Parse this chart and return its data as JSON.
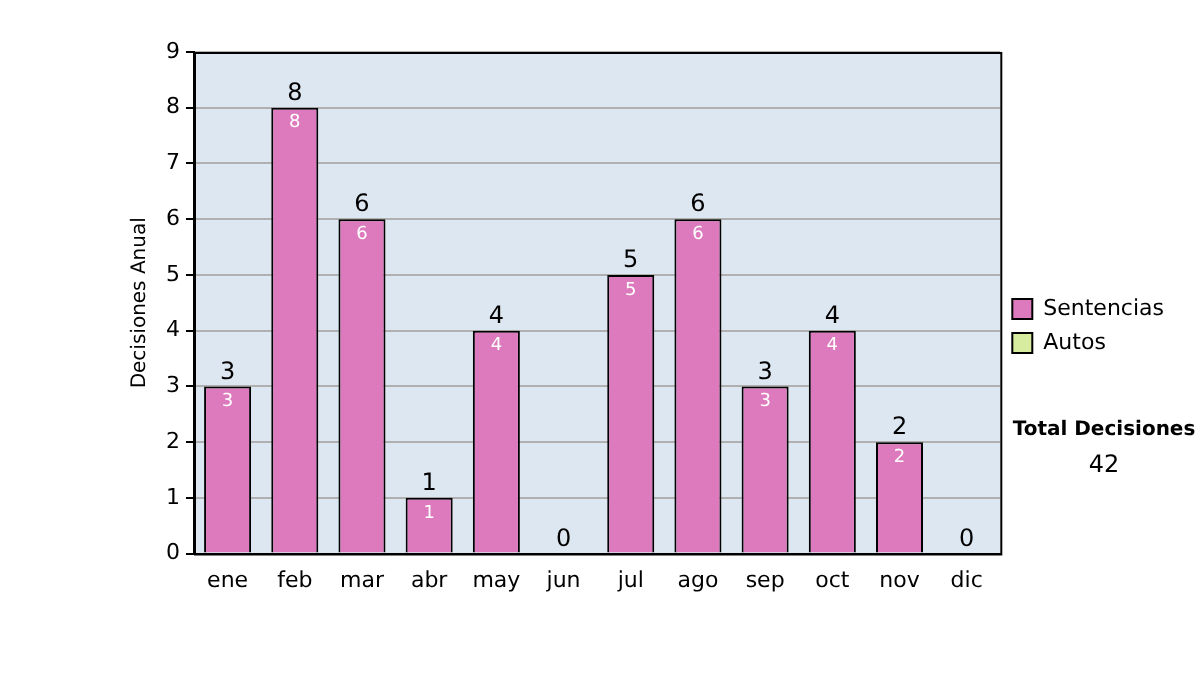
{
  "chart_data": {
    "type": "bar",
    "ylabel": "Decisiones Anual",
    "categories": [
      "ene",
      "feb",
      "mar",
      "abr",
      "may",
      "jun",
      "jul",
      "ago",
      "sep",
      "oct",
      "nov",
      "dic"
    ],
    "series": [
      {
        "name": "Sentencias",
        "color": "#dc7abd",
        "values": [
          3,
          8,
          6,
          1,
          4,
          0,
          5,
          6,
          3,
          4,
          2,
          0
        ],
        "value_labels": [
          "3",
          "8",
          "6",
          "1",
          "4",
          null,
          "5",
          "6",
          "3",
          "4",
          "2",
          null
        ]
      },
      {
        "name": "Autos",
        "color": "#d8eca0",
        "values": [
          0,
          0,
          0,
          0,
          0,
          0,
          0,
          0,
          0,
          0,
          0,
          0
        ]
      }
    ],
    "stacked": true,
    "totals": [
      "3",
      "8",
      "6",
      "1",
      "4",
      "0",
      "5",
      "6",
      "3",
      "4",
      "2",
      "0"
    ],
    "ylim": [
      0,
      9
    ],
    "yticks": [
      0,
      1,
      2,
      3,
      4,
      5,
      6,
      7,
      8,
      9
    ],
    "grid": "y",
    "legend": "right",
    "annotations": [
      "Total Decisiones",
      "42"
    ]
  }
}
